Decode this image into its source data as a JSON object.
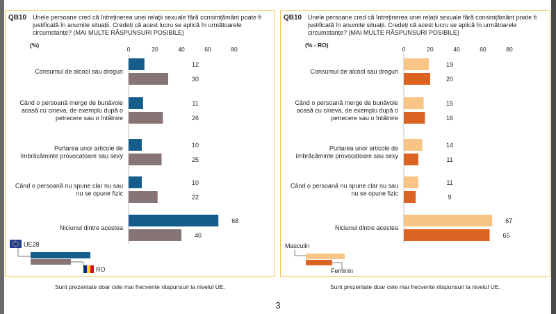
{
  "page": {
    "footnote": "Sunt prezentate doar cele mai frecvente răspunsuri la nivelul UE.",
    "page_number": "3"
  },
  "chart_data": [
    {
      "type": "bar",
      "orientation": "horizontal",
      "qcode": "QB10",
      "title": "Unele persoane cred că întreținerea unei relații sexuale fără consimțământ poate fi justificată în anumite situații. Credeți că acest lucru se aplică în următoarele circumstanțe? (MAI MULTE RĂSPUNSURI POSIBILE)",
      "unit": "(%)",
      "xlim": [
        0,
        80
      ],
      "xticks": [
        "0",
        "20",
        "40",
        "60",
        "80"
      ],
      "categories": [
        [
          "Consumul de alcool sau droguri"
        ],
        [
          "Când o persoană merge de bunăvoie",
          "acasă cu cineva, de exemplu după o",
          "petrecere sau o întâlnire"
        ],
        [
          "Purtarea unor articole de",
          "îmbrăcăminte provocatoare sau sexy"
        ],
        [
          "Când o persoană nu spune clar nu sau",
          "nu se opune fizic"
        ],
        [
          "Niciunul dintre acestea"
        ]
      ],
      "series": [
        {
          "name": "UE28",
          "color": "#175d8b",
          "values": [
            12,
            11,
            10,
            10,
            68
          ]
        },
        {
          "name": "RO",
          "color": "#877575",
          "values": [
            30,
            26,
            25,
            22,
            40
          ]
        }
      ],
      "legend": {
        "position": "bottom-left",
        "flag_colors": {
          "eu_blue": "#1f3d99",
          "eu_star": "#ffcc00",
          "ro": [
            "#002b7f",
            "#fcd116",
            "#ce1126"
          ]
        }
      }
    },
    {
      "type": "bar",
      "orientation": "horizontal",
      "qcode": "QB10",
      "title": "Unele persoane cred că întreținerea unei relații sexuale fără consimțământ poate fi justificată în anumite situații. Credeți că acest lucru se aplică în următoarele circumstanțe? (MAI MULTE RĂSPUNSURI POSIBILE)",
      "unit": "(% - RO)",
      "xlim": [
        0,
        80
      ],
      "xticks": [
        "0",
        "20",
        "40",
        "60",
        "80"
      ],
      "categories": [
        [
          "Consumul de alcool sau droguri"
        ],
        [
          "Când o persoană merge de bunăvoie",
          "acasă cu cineva, de exemplu după o",
          "petrecere sau o întâlnire"
        ],
        [
          "Purtarea unor articole de",
          "îmbrăcăminte provocatoare sau sexy"
        ],
        [
          "Când o persoană nu spune clar nu sau",
          "nu se opune fizic"
        ],
        [
          "Niciunul dintre acestea"
        ]
      ],
      "series": [
        {
          "name": "Masculin",
          "color": "#f8c586",
          "values": [
            19,
            15,
            14,
            11,
            67
          ]
        },
        {
          "name": "Feminin",
          "color": "#db6220",
          "values": [
            20,
            16,
            11,
            9,
            65
          ]
        }
      ],
      "legend": {
        "position": "bottom-left"
      }
    }
  ]
}
